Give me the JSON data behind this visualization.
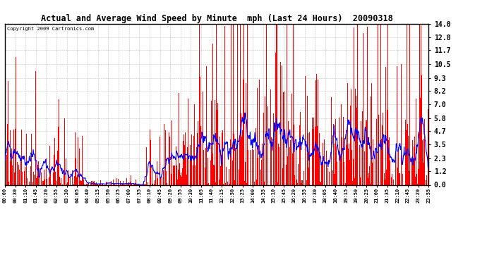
{
  "title": "Actual and Average Wind Speed by Minute  mph (Last 24 Hours)  20090318",
  "copyright": "Copyright 2009 Cartronics.com",
  "background_color": "#ffffff",
  "plot_background": "#ffffff",
  "grid_color": "#aaaaaa",
  "bar_color": "#ff0000",
  "line_color": "#0000ff",
  "yticks": [
    0.0,
    1.2,
    2.3,
    3.5,
    4.7,
    5.8,
    7.0,
    8.2,
    9.3,
    10.5,
    11.7,
    12.8,
    14.0
  ],
  "ylim": [
    0.0,
    14.0
  ],
  "x_labels": [
    "00:00",
    "00:30",
    "01:10",
    "01:45",
    "02:20",
    "02:55",
    "03:30",
    "04:05",
    "04:40",
    "05:15",
    "05:50",
    "06:25",
    "07:00",
    "07:35",
    "08:10",
    "08:45",
    "09:20",
    "09:55",
    "10:30",
    "11:05",
    "11:40",
    "12:15",
    "12:50",
    "13:25",
    "14:00",
    "14:35",
    "15:10",
    "15:45",
    "16:20",
    "16:55",
    "17:30",
    "18:05",
    "18:40",
    "19:15",
    "19:50",
    "20:25",
    "21:00",
    "21:35",
    "22:10",
    "22:45",
    "23:20",
    "23:55"
  ],
  "num_points": 1440,
  "avg_window": 20
}
